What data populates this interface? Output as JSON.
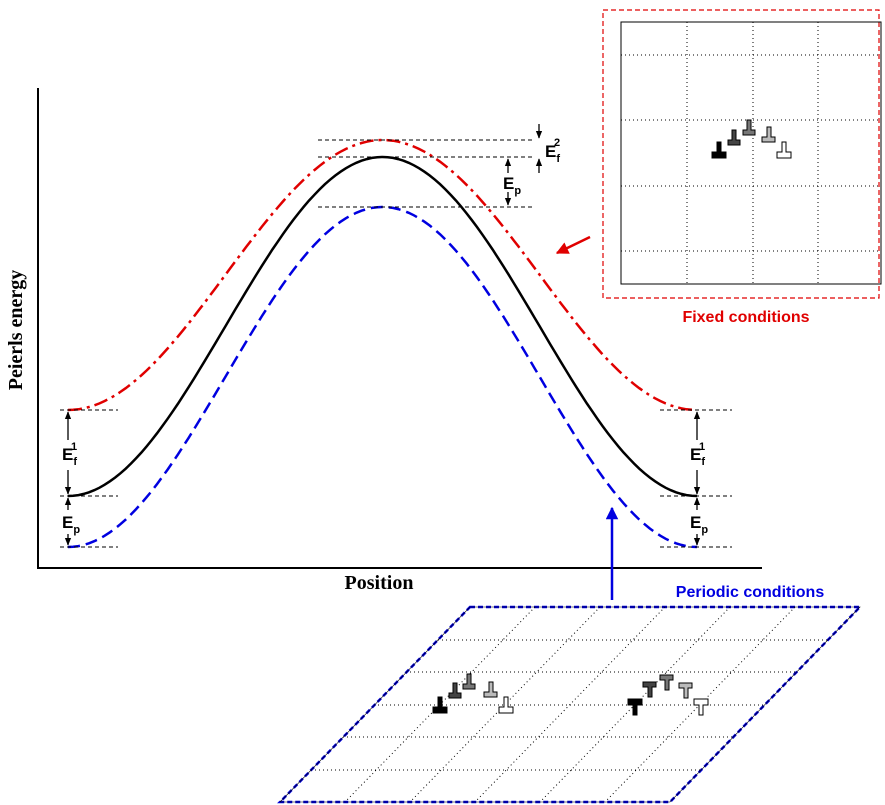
{
  "axes": {
    "xlabel": "Position",
    "ylabel": "Peierls energy"
  },
  "labels": {
    "ep": "E",
    "ep_sub": "p",
    "ef": "E",
    "ef_sub": "f",
    "ef1_sup": "1",
    "ef2_sup": "2"
  },
  "insets": {
    "fixed": {
      "caption": "Fixed conditions",
      "color": "#e00000"
    },
    "periodic": {
      "caption": "Periodic conditions",
      "color": "#0000e0"
    }
  },
  "curves": {
    "fixed_color": "#e00000",
    "middle_color": "#000000",
    "periodic_color": "#0000e0"
  }
}
